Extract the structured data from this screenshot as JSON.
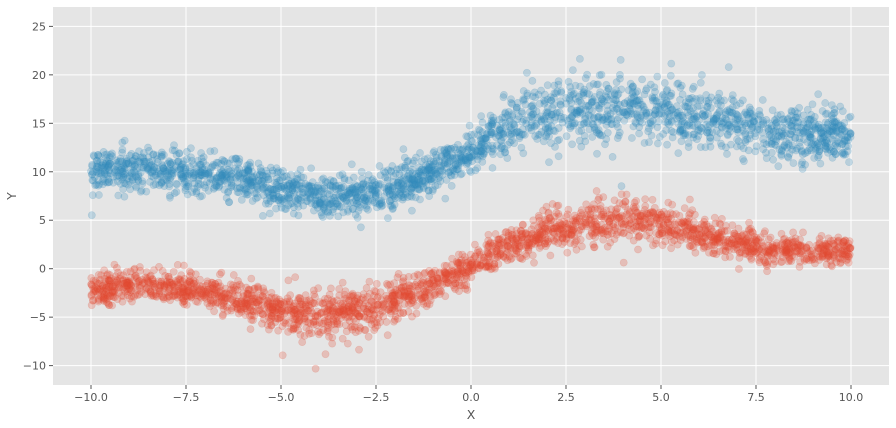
{
  "chart_data": {
    "type": "scatter",
    "title": "",
    "xlabel": "X",
    "ylabel": "Y",
    "xlim": [
      -11.0,
      11.0
    ],
    "ylim": [
      -12.0,
      27.0
    ],
    "x_ticks": [
      -10.0,
      -7.5,
      -5.0,
      -2.5,
      0.0,
      2.5,
      5.0,
      7.5,
      10.0
    ],
    "x_tick_labels": [
      "−10.0",
      "−7.5",
      "−5.0",
      "−2.5",
      "0.0",
      "2.5",
      "5.0",
      "7.5",
      "10.0"
    ],
    "y_ticks": [
      -10,
      -5,
      0,
      5,
      10,
      15,
      20,
      25
    ],
    "y_tick_labels": [
      "−10",
      "−5",
      "0",
      "5",
      "10",
      "15",
      "20",
      "25"
    ],
    "grid": true,
    "legend": "none",
    "style": {
      "background": "#e5e5e5",
      "grid_color": "#ffffff",
      "point_alpha": 0.25
    },
    "series": [
      {
        "color": "#348abd",
        "x": [
          -10.0,
          -9.0,
          -8.0,
          -7.0,
          -6.0,
          -5.0,
          -4.0,
          -3.0,
          -2.0,
          -1.0,
          0.0,
          1.0,
          2.0,
          3.0,
          4.0,
          5.0,
          6.0,
          7.0,
          8.0,
          9.0,
          10.0
        ],
        "y": [
          10.0,
          10.3,
          10.2,
          9.8,
          9.2,
          8.2,
          7.5,
          7.6,
          8.3,
          10.0,
          12.3,
          14.5,
          16.0,
          16.6,
          16.7,
          16.3,
          15.6,
          14.8,
          14.0,
          13.7,
          13.7
        ],
        "spread": [
          2.2,
          2.2,
          2.2,
          2.1,
          2.0,
          2.0,
          2.0,
          2.0,
          2.0,
          2.1,
          2.3,
          3.0,
          3.4,
          3.6,
          3.6,
          3.4,
          3.2,
          3.0,
          2.7,
          2.6,
          2.6
        ]
      },
      {
        "color": "#e24a33",
        "x": [
          -10.0,
          -9.0,
          -8.0,
          -7.0,
          -6.0,
          -5.0,
          -4.0,
          -3.0,
          -2.0,
          -1.0,
          0.0,
          1.0,
          2.0,
          3.0,
          4.0,
          5.0,
          6.0,
          7.0,
          8.0,
          9.0,
          10.0
        ],
        "y": [
          -2.2,
          -1.8,
          -1.8,
          -2.4,
          -3.3,
          -4.3,
          -4.9,
          -4.5,
          -3.4,
          -1.8,
          0.3,
          2.2,
          3.7,
          4.6,
          5.0,
          4.6,
          3.6,
          2.6,
          2.0,
          1.7,
          2.0
        ],
        "spread": [
          1.6,
          1.6,
          1.6,
          1.7,
          1.9,
          2.1,
          2.3,
          2.3,
          2.1,
          1.8,
          1.6,
          1.8,
          2.0,
          2.1,
          2.2,
          2.1,
          1.9,
          1.7,
          1.5,
          1.5,
          1.5
        ]
      }
    ]
  }
}
